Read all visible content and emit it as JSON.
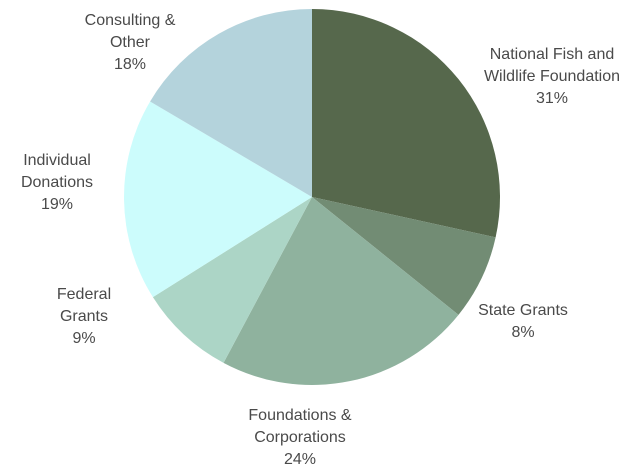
{
  "chart_data": {
    "type": "pie",
    "categories": [
      "National Fish and Wildlife Foundation",
      "State Grants",
      "Foundations & Corporations",
      "Federal Grants",
      "Individual Donations",
      "Consulting & Other"
    ],
    "values": [
      31,
      8,
      24,
      9,
      19,
      18
    ],
    "value_labels": [
      "31%",
      "8%",
      "24%",
      "9%",
      "19%",
      "18%"
    ],
    "colors": [
      "#56684c",
      "#728c74",
      "#8fb29e",
      "#acd5c6",
      "#ccfcfc",
      "#b4d3dc"
    ]
  }
}
